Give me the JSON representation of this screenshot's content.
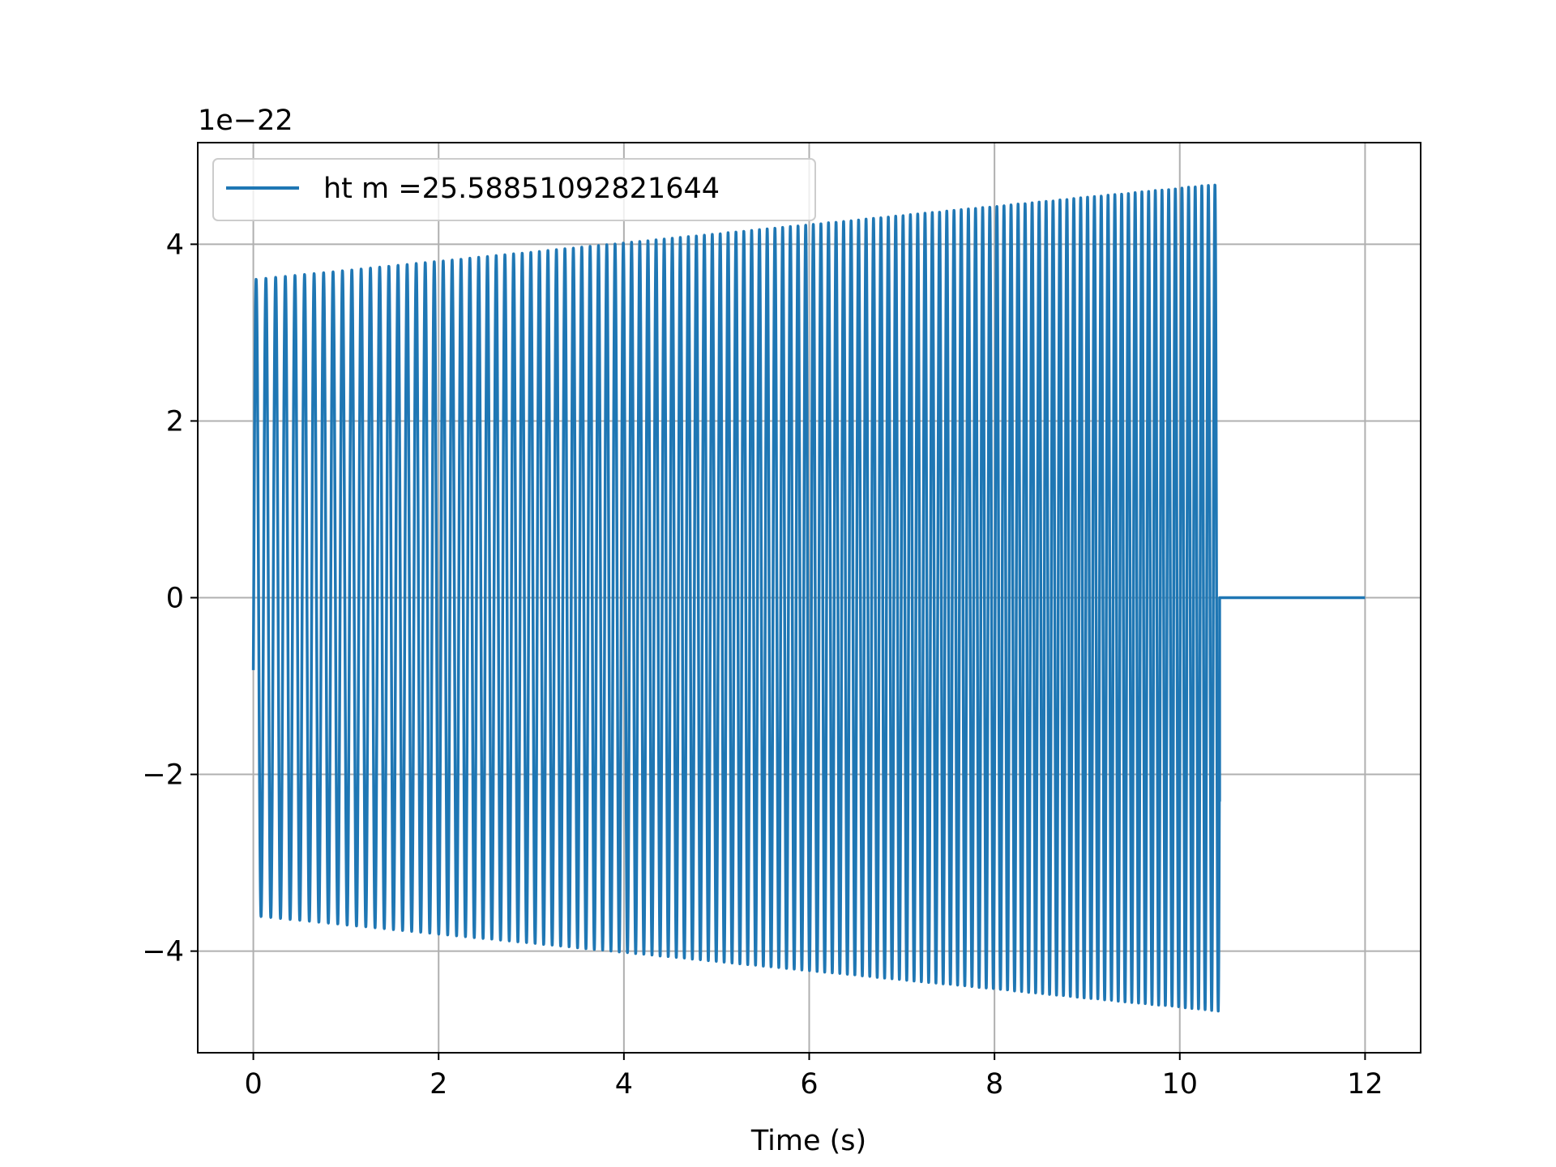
{
  "chart_data": {
    "type": "line",
    "title": "",
    "xlabel": "Time (s)",
    "ylabel": "",
    "y_offset_label": "1e−22",
    "xlim": [
      -0.6,
      12.6
    ],
    "ylim": [
      -5.15,
      5.15
    ],
    "xticks": [
      0,
      2,
      4,
      6,
      8,
      10,
      12
    ],
    "xtick_labels": [
      "0",
      "2",
      "4",
      "6",
      "8",
      "10",
      "12"
    ],
    "yticks": [
      -4,
      -2,
      0,
      2,
      4
    ],
    "ytick_labels": [
      "−4",
      "−2",
      "0",
      "2",
      "4"
    ],
    "grid": true,
    "legend_position": "upper-left",
    "series": [
      {
        "name": "ht m =25.58851092821644",
        "color": "#1f77b4",
        "signal": {
          "kind": "chirp",
          "t_start": 0.0,
          "t_end": 10.43,
          "initial_value": -0.82,
          "amplitude_start": 3.6,
          "amplitude_end": 4.68,
          "frequency_start": 5.3,
          "frequency_end": 22.0,
          "cycles": 123,
          "final_value_at_cutoff": -2.3,
          "t_flat_end": 12.0,
          "flat_value": 0
        }
      }
    ]
  }
}
